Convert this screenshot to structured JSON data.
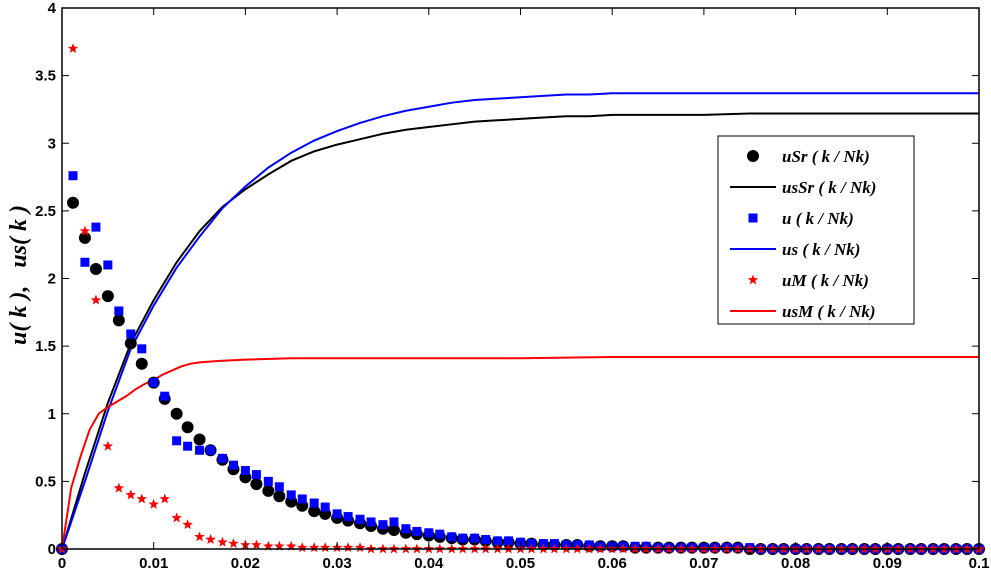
{
  "chart_data": {
    "type": "line",
    "title": "",
    "xlabel": "",
    "ylabel": "u( k ),   us( k )",
    "xlim": [
      0,
      0.1
    ],
    "ylim": [
      0,
      4
    ],
    "xticks": [
      "0",
      "0.01",
      "0.02",
      "0.03",
      "0.04",
      "0.05",
      "0.06",
      "0.07",
      "0.08",
      "0.09",
      "0.1"
    ],
    "yticks": [
      "0",
      "0.5",
      "1",
      "1.5",
      "2",
      "2.5",
      "3",
      "3.5",
      "4"
    ],
    "grid": false,
    "legend_position": "right",
    "series": [
      {
        "name": "uSr  ( k / Nk)",
        "style": "marker",
        "marker": "circle",
        "color": "#000000",
        "x": [
          0.0,
          0.0012,
          0.0025,
          0.0037,
          0.005,
          0.0062,
          0.0075,
          0.0087,
          0.01,
          0.0112,
          0.0125,
          0.0137,
          0.015,
          0.0162,
          0.0175,
          0.0187,
          0.02,
          0.0212,
          0.0225,
          0.0237,
          0.025,
          0.0262,
          0.0275,
          0.0287,
          0.03,
          0.0312,
          0.0325,
          0.0337,
          0.035,
          0.0362,
          0.0375,
          0.0387,
          0.04,
          0.0412,
          0.0425,
          0.0437,
          0.045,
          0.0462,
          0.0475,
          0.0487,
          0.05,
          0.0512,
          0.0525,
          0.0537,
          0.055,
          0.0562,
          0.0575,
          0.0587,
          0.06,
          0.0612,
          0.0625,
          0.0637,
          0.065,
          0.0662,
          0.0675,
          0.0687,
          0.07,
          0.0712,
          0.0725,
          0.0737,
          0.075,
          0.0762,
          0.0775,
          0.0787,
          0.08,
          0.0812,
          0.0825,
          0.0837,
          0.085,
          0.0862,
          0.0875,
          0.0887,
          0.09,
          0.0912,
          0.0925,
          0.0937,
          0.095,
          0.0962,
          0.0975,
          0.0987,
          0.1
        ],
        "y": [
          0.0,
          2.56,
          2.3,
          2.07,
          1.87,
          1.69,
          1.52,
          1.37,
          1.23,
          1.11,
          1.0,
          0.9,
          0.81,
          0.73,
          0.66,
          0.59,
          0.53,
          0.48,
          0.43,
          0.39,
          0.35,
          0.32,
          0.28,
          0.26,
          0.23,
          0.21,
          0.19,
          0.17,
          0.15,
          0.14,
          0.12,
          0.11,
          0.1,
          0.09,
          0.08,
          0.07,
          0.07,
          0.06,
          0.05,
          0.05,
          0.04,
          0.04,
          0.03,
          0.03,
          0.03,
          0.03,
          0.02,
          0.02,
          0.02,
          0.02,
          0.01,
          0.01,
          0.01,
          0.01,
          0.01,
          0.01,
          0.01,
          0.01,
          0.01,
          0.01,
          0.0,
          0.0,
          0.0,
          0.0,
          0.0,
          0.0,
          0.0,
          0.0,
          0.0,
          0.0,
          0.0,
          0.0,
          0.0,
          0.0,
          0.0,
          0.0,
          0.0,
          0.0,
          0.0,
          0.0,
          0.0
        ]
      },
      {
        "name": "usSr  ( k / Nk)",
        "style": "line",
        "color": "#000000",
        "x": [
          0.0,
          0.0025,
          0.005,
          0.0075,
          0.01,
          0.0125,
          0.015,
          0.0175,
          0.02,
          0.0225,
          0.025,
          0.0275,
          0.03,
          0.0325,
          0.035,
          0.0375,
          0.04,
          0.0425,
          0.045,
          0.0475,
          0.05,
          0.0525,
          0.055,
          0.0575,
          0.06,
          0.065,
          0.07,
          0.075,
          0.08,
          0.085,
          0.09,
          0.095,
          0.1
        ],
        "y": [
          0.0,
          0.56,
          1.08,
          1.52,
          1.84,
          2.12,
          2.35,
          2.53,
          2.66,
          2.77,
          2.87,
          2.94,
          2.99,
          3.03,
          3.07,
          3.1,
          3.12,
          3.14,
          3.16,
          3.17,
          3.18,
          3.19,
          3.2,
          3.2,
          3.21,
          3.21,
          3.21,
          3.22,
          3.22,
          3.22,
          3.22,
          3.22,
          3.22
        ]
      },
      {
        "name": "u  ( k / Nk)",
        "style": "marker",
        "marker": "square",
        "color": "#0000ff",
        "x": [
          0.0,
          0.0012,
          0.0025,
          0.0037,
          0.005,
          0.0062,
          0.0075,
          0.0087,
          0.01,
          0.0112,
          0.0125,
          0.0137,
          0.015,
          0.0162,
          0.0175,
          0.0187,
          0.02,
          0.0212,
          0.0225,
          0.0237,
          0.025,
          0.0262,
          0.0275,
          0.0287,
          0.03,
          0.0312,
          0.0325,
          0.0337,
          0.035,
          0.0362,
          0.0375,
          0.0387,
          0.04,
          0.0412,
          0.0425,
          0.0437,
          0.045,
          0.0462,
          0.0475,
          0.0487,
          0.05,
          0.0512,
          0.0525,
          0.0537,
          0.055,
          0.0562,
          0.0575,
          0.0587,
          0.06,
          0.0612,
          0.0625,
          0.0637,
          0.065,
          0.0662,
          0.0675,
          0.0687,
          0.07,
          0.0712,
          0.0725,
          0.0737,
          0.075,
          0.0762,
          0.0775,
          0.0787,
          0.08,
          0.0812,
          0.0825,
          0.0837,
          0.085,
          0.0862,
          0.0875,
          0.0887,
          0.09,
          0.0912,
          0.0925,
          0.0937,
          0.095,
          0.0962,
          0.0975,
          0.0987,
          0.1
        ],
        "y": [
          0.0,
          2.76,
          2.12,
          2.38,
          2.1,
          1.76,
          1.59,
          1.48,
          1.23,
          1.13,
          0.8,
          0.76,
          0.73,
          0.73,
          0.67,
          0.62,
          0.58,
          0.55,
          0.5,
          0.46,
          0.4,
          0.37,
          0.34,
          0.31,
          0.26,
          0.24,
          0.22,
          0.2,
          0.18,
          0.2,
          0.15,
          0.13,
          0.12,
          0.11,
          0.09,
          0.08,
          0.08,
          0.07,
          0.06,
          0.06,
          0.05,
          0.04,
          0.04,
          0.04,
          0.03,
          0.03,
          0.03,
          0.02,
          0.02,
          0.02,
          0.02,
          0.02,
          0.01,
          0.01,
          0.01,
          0.01,
          0.01,
          0.01,
          0.01,
          0.01,
          0.01,
          0.0,
          0.0,
          0.0,
          0.0,
          0.0,
          0.0,
          0.0,
          0.0,
          0.0,
          0.0,
          0.0,
          0.0,
          0.0,
          0.0,
          0.0,
          0.0,
          0.0,
          0.0,
          0.0,
          0.0
        ]
      },
      {
        "name": "us  ( k / Nk)",
        "style": "line",
        "color": "#0000ff",
        "x": [
          0.0,
          0.0025,
          0.005,
          0.0075,
          0.01,
          0.0125,
          0.015,
          0.0175,
          0.02,
          0.0225,
          0.025,
          0.0275,
          0.03,
          0.0325,
          0.035,
          0.0375,
          0.04,
          0.0425,
          0.045,
          0.0475,
          0.05,
          0.0525,
          0.055,
          0.0575,
          0.06,
          0.065,
          0.07,
          0.075,
          0.08,
          0.085,
          0.09,
          0.095,
          0.1
        ],
        "y": [
          0.0,
          0.5,
          1.02,
          1.48,
          1.8,
          2.08,
          2.31,
          2.52,
          2.68,
          2.82,
          2.93,
          3.02,
          3.09,
          3.15,
          3.2,
          3.24,
          3.27,
          3.3,
          3.32,
          3.33,
          3.34,
          3.35,
          3.36,
          3.36,
          3.37,
          3.37,
          3.37,
          3.37,
          3.37,
          3.37,
          3.37,
          3.37,
          3.37
        ]
      },
      {
        "name": "uM  ( k / Nk)",
        "style": "marker",
        "marker": "star",
        "color": "#ff0000",
        "x": [
          0.0,
          0.0012,
          0.0025,
          0.0037,
          0.005,
          0.0062,
          0.0075,
          0.0087,
          0.01,
          0.0112,
          0.0125,
          0.0137,
          0.015,
          0.0162,
          0.0175,
          0.0187,
          0.02,
          0.0212,
          0.0225,
          0.0237,
          0.025,
          0.0262,
          0.0275,
          0.0287,
          0.03,
          0.0312,
          0.0325,
          0.0337,
          0.035,
          0.0362,
          0.0375,
          0.0387,
          0.04,
          0.0412,
          0.0425,
          0.0437,
          0.045,
          0.0462,
          0.0475,
          0.0487,
          0.05,
          0.0512,
          0.0525,
          0.0537,
          0.055,
          0.0562,
          0.0575,
          0.0587,
          0.06,
          0.0612,
          0.0625,
          0.0637,
          0.065,
          0.0662,
          0.0675,
          0.0687,
          0.07,
          0.0712,
          0.0725,
          0.0737,
          0.075,
          0.0762,
          0.0775,
          0.0787,
          0.08,
          0.0812,
          0.0825,
          0.0837,
          0.085,
          0.0862,
          0.0875,
          0.0887,
          0.09,
          0.0912,
          0.0925,
          0.0937,
          0.095,
          0.0962,
          0.0975,
          0.0987,
          0.1
        ],
        "y": [
          0.0,
          3.7,
          2.35,
          1.84,
          0.76,
          0.45,
          0.4,
          0.37,
          0.33,
          0.37,
          0.23,
          0.18,
          0.09,
          0.07,
          0.05,
          0.04,
          0.03,
          0.03,
          0.02,
          0.02,
          0.02,
          0.01,
          0.01,
          0.01,
          0.01,
          0.01,
          0.01,
          0.0,
          0.0,
          0.0,
          0.0,
          0.0,
          0.0,
          0.0,
          0.0,
          0.0,
          0.0,
          0.0,
          0.0,
          0.0,
          0.0,
          0.0,
          0.0,
          0.0,
          0.0,
          0.0,
          0.0,
          0.0,
          0.0,
          0.0,
          0.0,
          0.0,
          0.0,
          0.0,
          0.0,
          0.0,
          0.0,
          0.0,
          0.0,
          0.0,
          0.0,
          0.0,
          0.0,
          0.0,
          0.0,
          0.0,
          0.0,
          0.0,
          0.0,
          0.0,
          0.0,
          0.0,
          0.0,
          0.0,
          0.0,
          0.0,
          0.0,
          0.0,
          0.0,
          0.0,
          0.0
        ]
      },
      {
        "name": "usM  ( k / Nk)",
        "style": "line",
        "color": "#ff0000",
        "x": [
          0.0,
          0.001,
          0.002,
          0.003,
          0.004,
          0.005,
          0.006,
          0.007,
          0.008,
          0.009,
          0.01,
          0.011,
          0.012,
          0.013,
          0.014,
          0.015,
          0.017,
          0.02,
          0.025,
          0.03,
          0.04,
          0.05,
          0.06,
          0.07,
          0.08,
          0.09,
          0.1
        ],
        "y": [
          0.0,
          0.45,
          0.68,
          0.88,
          1.0,
          1.05,
          1.09,
          1.13,
          1.18,
          1.22,
          1.25,
          1.29,
          1.32,
          1.35,
          1.37,
          1.38,
          1.39,
          1.4,
          1.41,
          1.41,
          1.41,
          1.41,
          1.42,
          1.42,
          1.42,
          1.42,
          1.42
        ]
      }
    ]
  }
}
